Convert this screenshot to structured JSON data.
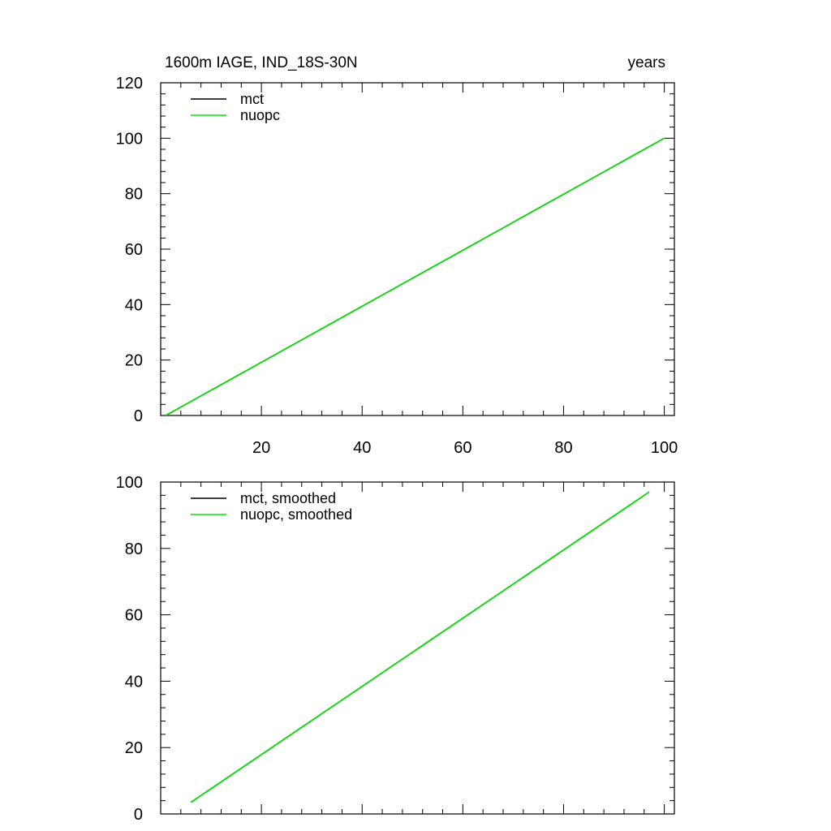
{
  "chart_data": [
    {
      "type": "line",
      "title": "1600m IAGE, IND_18S-30N",
      "units": "years",
      "xlim": [
        0,
        102
      ],
      "ylim": [
        0,
        120
      ],
      "xticks": [
        20,
        40,
        60,
        80,
        100
      ],
      "yticks": [
        0,
        20,
        40,
        60,
        80,
        100,
        120
      ],
      "legend_position": "top-left",
      "colors": {
        "mct": "#000000",
        "nuopc": "#00e600"
      },
      "series": [
        {
          "name": "mct",
          "x": [
            1,
            100
          ],
          "y": [
            0,
            100
          ]
        },
        {
          "name": "nuopc",
          "x": [
            1,
            100
          ],
          "y": [
            0,
            100
          ]
        }
      ]
    },
    {
      "type": "line",
      "xlim": [
        0,
        102
      ],
      "ylim": [
        0,
        100
      ],
      "yticks": [
        0,
        20,
        40,
        60,
        80,
        100
      ],
      "legend_position": "top-left",
      "colors": {
        "mct": "#000000",
        "nuopc": "#00e600"
      },
      "series": [
        {
          "name": "mct, smoothed",
          "x": [
            6,
            97
          ],
          "y": [
            3.5,
            97
          ]
        },
        {
          "name": "nuopc, smoothed",
          "x": [
            6,
            97
          ],
          "y": [
            3.5,
            97
          ]
        }
      ]
    }
  ]
}
